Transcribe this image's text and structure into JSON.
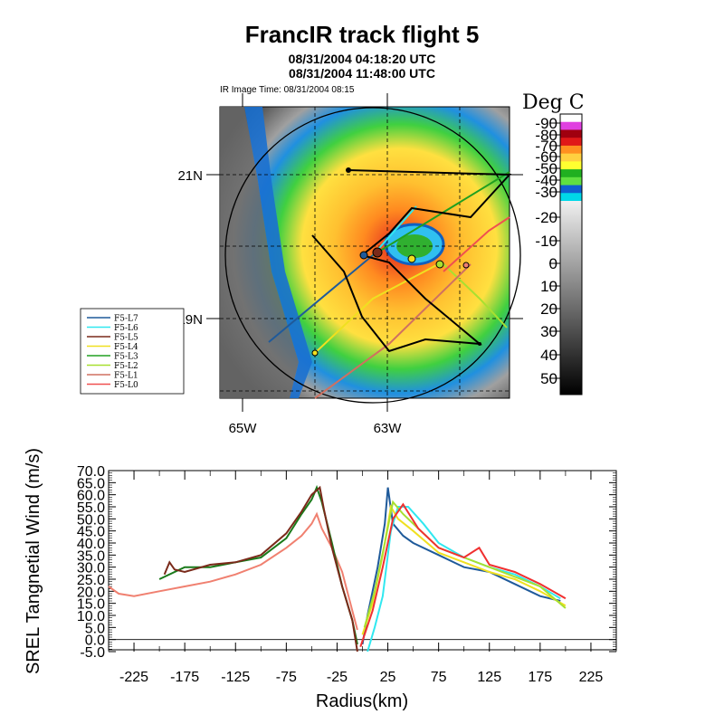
{
  "header": {
    "title": "FrancIR track flight 5",
    "time_start": "08/31/2004 04:18:20 UTC",
    "time_end": "08/31/2004 11:48:00 UTC",
    "ir_time": "IR Image Time: 08/31/2004 08:15"
  },
  "map": {
    "lat_labels": [
      "21N",
      "19N"
    ],
    "lon_labels": [
      "65W",
      "63W"
    ],
    "colorbar_title": "Deg C",
    "colorbar_ticks": [
      "-90",
      "-80",
      "-70",
      "-60",
      "-50",
      "-40",
      "-30",
      "-20",
      "-10",
      "0",
      "10",
      "20",
      "30",
      "40",
      "50"
    ],
    "colorbar_colors": [
      "#ffffff",
      "#e040e0",
      "#a0000f",
      "#e01818",
      "#ff9020",
      "#ffd040",
      "#ffff30",
      "#20b020",
      "#60e040",
      "#1060d0",
      "#00d8e8"
    ],
    "legend": [
      {
        "label": "F5-L7",
        "color": "#1f5a9a"
      },
      {
        "label": "F5-L6",
        "color": "#30e8f0"
      },
      {
        "label": "F5-L5",
        "color": "#7a2a1a"
      },
      {
        "label": "F5-L4",
        "color": "#f0e020"
      },
      {
        "label": "F5-L3",
        "color": "#20a020"
      },
      {
        "label": "F5-L2",
        "color": "#a8e030"
      },
      {
        "label": "F5-L1",
        "color": "#d07060"
      },
      {
        "label": "F5-L0",
        "color": "#f05050"
      }
    ]
  },
  "chart_data": {
    "type": "line",
    "title": "",
    "xlabel": "Radius(km)",
    "ylabel": "SREL Tangnetial Wind (m/s)",
    "xlim": [
      -250,
      250
    ],
    "ylim": [
      -5,
      70
    ],
    "xticks": [
      "-225",
      "-175",
      "-125",
      "-75",
      "-25",
      "25",
      "75",
      "125",
      "175",
      "225"
    ],
    "yticks": [
      "-5.0",
      "0.0",
      "5.0",
      "10.0",
      "15.0",
      "20.0",
      "25.0",
      "30.0",
      "35.0",
      "40.0",
      "45.0",
      "50.0",
      "55.0",
      "60.0",
      "65.0",
      "70.0"
    ],
    "series": [
      {
        "color": "#f08070",
        "points": [
          [
            -250,
            22
          ],
          [
            -240,
            19
          ],
          [
            -225,
            18
          ],
          [
            -200,
            20
          ],
          [
            -175,
            22
          ],
          [
            -150,
            24
          ],
          [
            -125,
            27
          ],
          [
            -100,
            31
          ],
          [
            -75,
            38
          ],
          [
            -60,
            43
          ],
          [
            -50,
            48
          ],
          [
            -45,
            52
          ],
          [
            -40,
            46
          ],
          [
            -30,
            38
          ],
          [
            -20,
            28
          ],
          [
            -10,
            12
          ],
          [
            -5,
            4
          ]
        ]
      },
      {
        "color": "#1a7a1a",
        "points": [
          [
            -200,
            25
          ],
          [
            -175,
            30
          ],
          [
            -150,
            30
          ],
          [
            -125,
            32
          ],
          [
            -100,
            34
          ],
          [
            -75,
            42
          ],
          [
            -60,
            52
          ],
          [
            -50,
            58
          ],
          [
            -45,
            63
          ],
          [
            -40,
            57
          ],
          [
            -30,
            40
          ],
          [
            -20,
            22
          ],
          [
            -10,
            8
          ],
          [
            -5,
            -2
          ]
        ]
      },
      {
        "color": "#7a2a1a",
        "points": [
          [
            -195,
            27
          ],
          [
            -190,
            32
          ],
          [
            -185,
            29
          ],
          [
            -175,
            28
          ],
          [
            -150,
            31
          ],
          [
            -125,
            32
          ],
          [
            -100,
            35
          ],
          [
            -75,
            44
          ],
          [
            -60,
            53
          ],
          [
            -50,
            60
          ],
          [
            -42,
            63
          ],
          [
            -38,
            54
          ],
          [
            -30,
            38
          ],
          [
            -20,
            22
          ],
          [
            -10,
            8
          ],
          [
            -5,
            -5
          ]
        ]
      },
      {
        "color": "#1f5a9a",
        "points": [
          [
            0,
            -2
          ],
          [
            5,
            10
          ],
          [
            15,
            30
          ],
          [
            22,
            48
          ],
          [
            25,
            63
          ],
          [
            30,
            48
          ],
          [
            40,
            43
          ],
          [
            50,
            40
          ],
          [
            75,
            35
          ],
          [
            100,
            30
          ],
          [
            125,
            28
          ],
          [
            150,
            23
          ],
          [
            175,
            18
          ],
          [
            195,
            16
          ]
        ]
      },
      {
        "color": "#30e8f0",
        "points": [
          [
            5,
            -5
          ],
          [
            12,
            5
          ],
          [
            20,
            18
          ],
          [
            28,
            45
          ],
          [
            35,
            55
          ],
          [
            45,
            55
          ],
          [
            60,
            48
          ],
          [
            75,
            40
          ],
          [
            100,
            34
          ],
          [
            125,
            30
          ],
          [
            150,
            27
          ],
          [
            175,
            22
          ],
          [
            195,
            17
          ]
        ]
      },
      {
        "color": "#f0e020",
        "points": [
          [
            0,
            2
          ],
          [
            10,
            15
          ],
          [
            20,
            35
          ],
          [
            28,
            55
          ],
          [
            35,
            50
          ],
          [
            50,
            45
          ],
          [
            75,
            36
          ],
          [
            100,
            32
          ],
          [
            125,
            28
          ],
          [
            150,
            25
          ],
          [
            175,
            20
          ],
          [
            200,
            14
          ]
        ]
      },
      {
        "color": "#a8e030",
        "points": [
          [
            2,
            5
          ],
          [
            12,
            20
          ],
          [
            22,
            40
          ],
          [
            30,
            57
          ],
          [
            40,
            52
          ],
          [
            55,
            46
          ],
          [
            75,
            38
          ],
          [
            100,
            34
          ],
          [
            125,
            30
          ],
          [
            150,
            26
          ],
          [
            175,
            22
          ],
          [
            200,
            13
          ]
        ]
      },
      {
        "color": "#f03030",
        "points": [
          [
            -2,
            -3
          ],
          [
            10,
            12
          ],
          [
            20,
            30
          ],
          [
            30,
            50
          ],
          [
            40,
            56
          ],
          [
            55,
            46
          ],
          [
            75,
            38
          ],
          [
            100,
            34
          ],
          [
            115,
            38
          ],
          [
            125,
            31
          ],
          [
            150,
            28
          ],
          [
            175,
            23
          ],
          [
            200,
            17
          ]
        ]
      }
    ]
  }
}
